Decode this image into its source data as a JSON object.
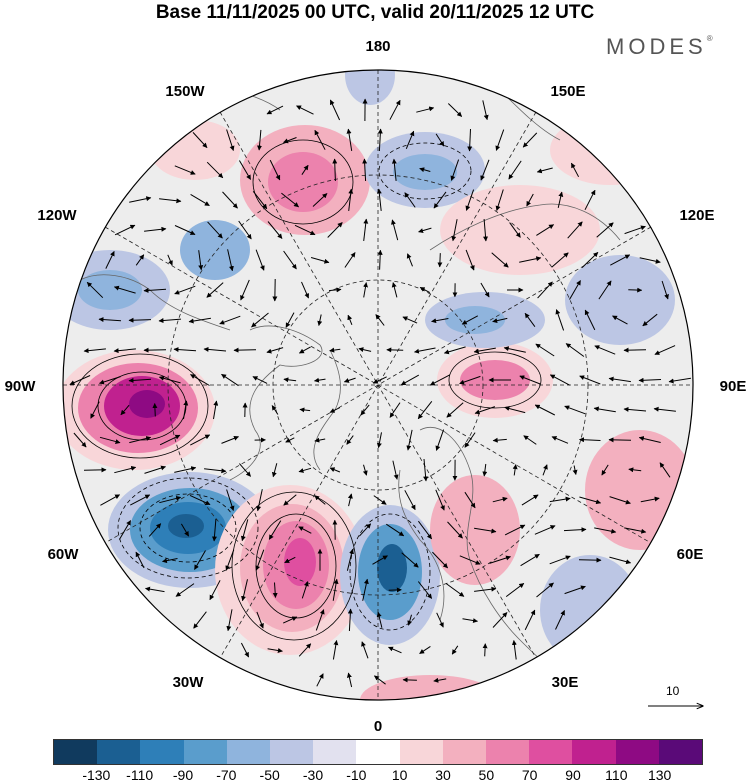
{
  "title": "Base 11/11/2025 00 UTC, valid 20/11/2025 12 UTC",
  "brand": "MODES",
  "brand_mark": "®",
  "longitude_labels": {
    "top": "180",
    "top_left": "150W",
    "top_right": "150E",
    "upper_left": "120W",
    "upper_right": "120E",
    "left": "90W",
    "right": "90E",
    "lower_left": "60W",
    "lower_right": "60E",
    "bottom_left": "30W",
    "bottom_right": "30E",
    "bottom": "0"
  },
  "vector_scale": {
    "label": "10",
    "icon": "arrow-right-icon"
  },
  "colorbar": {
    "ticks": [
      "-130",
      "-110",
      "-90",
      "-70",
      "-50",
      "-30",
      "-10",
      "10",
      "30",
      "50",
      "70",
      "90",
      "110",
      "130"
    ],
    "colors": [
      "#103a5e",
      "#1b5f92",
      "#2e7fb8",
      "#5a9dcc",
      "#8fb4dd",
      "#bcc6e4",
      "#e2e1ef",
      "#ffffff",
      "#f8d6d9",
      "#f3b0bf",
      "#ec82ad",
      "#df4fa0",
      "#c0218f",
      "#8e0a83",
      "#5a0a78"
    ]
  },
  "anomaly_centers": [
    {
      "name": "mid-atlantic-negative",
      "sign": "negative",
      "level": -110
    },
    {
      "name": "north-atlantic-positive",
      "sign": "positive",
      "level": 110
    },
    {
      "name": "canada-positive",
      "sign": "positive",
      "level": 130
    },
    {
      "name": "scandinavia-negative",
      "sign": "negative",
      "level": -110
    },
    {
      "name": "pacific-positive",
      "sign": "positive",
      "level": 70
    },
    {
      "name": "bering-negative",
      "sign": "negative",
      "level": -50
    },
    {
      "name": "siberia-positive",
      "sign": "positive",
      "level": 50
    },
    {
      "name": "east-siberia-negative",
      "sign": "negative",
      "level": -50
    }
  ]
}
